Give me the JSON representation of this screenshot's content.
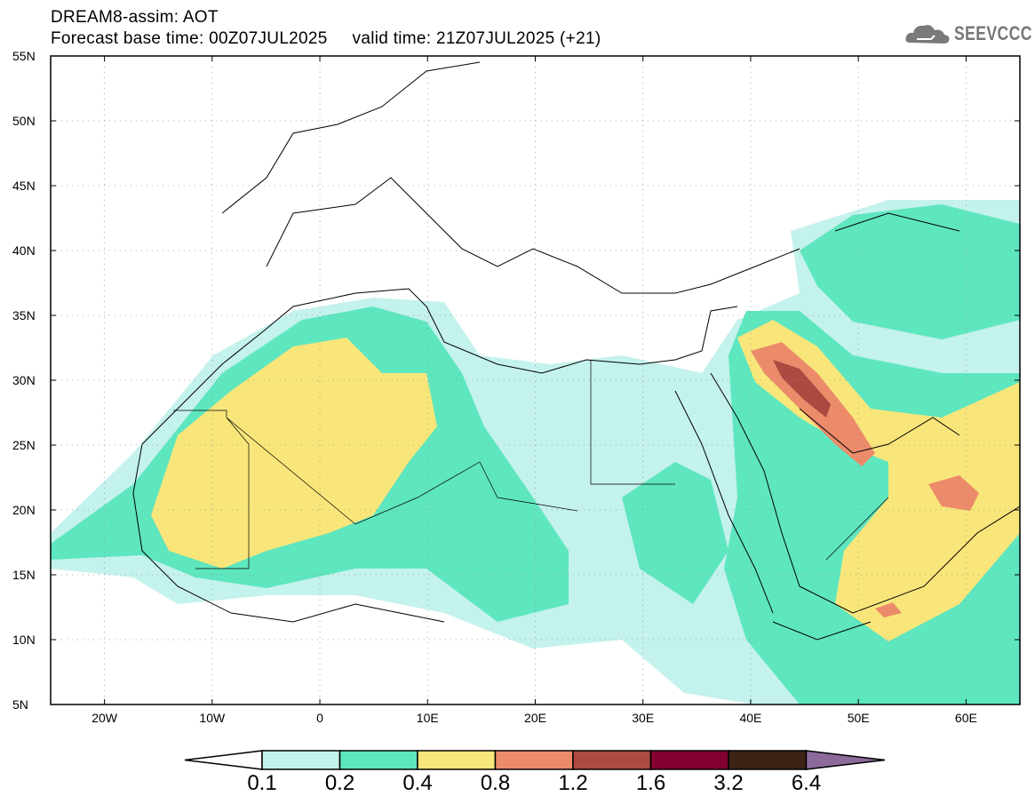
{
  "header": {
    "title": "DREAM8-assim: AOT",
    "subtitle": "Forecast base time: 00Z07JUL2025     valid time: 21Z07JUL2025 (+21)",
    "logo_text": "SEEVCCC"
  },
  "map": {
    "lat_labels": [
      "55N",
      "50N",
      "45N",
      "40N",
      "35N",
      "30N",
      "25N",
      "20N",
      "15N",
      "10N",
      "5N"
    ],
    "lon_labels": [
      "20W",
      "10W",
      "0",
      "10E",
      "20E",
      "30E",
      "40E",
      "50E",
      "60E"
    ],
    "lon_range": [
      -25,
      65
    ],
    "lat_range": [
      5,
      55
    ]
  },
  "colorbar": {
    "labels": [
      "0.1",
      "0.2",
      "0.4",
      "0.8",
      "1.2",
      "1.6",
      "3.2",
      "6.4"
    ],
    "colors": [
      "#ffffff",
      "#c4f2ec",
      "#5ee6bf",
      "#f8e67a",
      "#ec8b6a",
      "#ac4a42",
      "#840030",
      "#3c2414",
      "#8c6a9c"
    ]
  }
}
